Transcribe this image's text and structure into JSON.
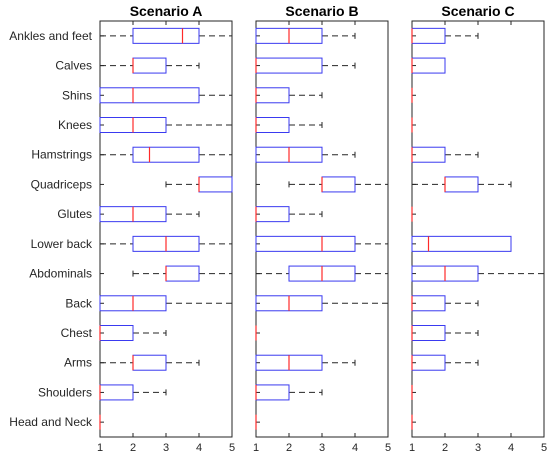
{
  "chart_data": {
    "type": "boxplot",
    "categories": [
      "Ankles and feet",
      "Calves",
      "Shins",
      "Knees",
      "Hamstrings",
      "Quadriceps",
      "Glutes",
      "Lower back",
      "Abdominals",
      "Back",
      "Chest",
      "Arms",
      "Shoulders",
      "Head and Neck"
    ],
    "xlim": [
      1,
      5
    ],
    "xticks": [
      1,
      2,
      3,
      4,
      5
    ],
    "colors": {
      "box": "#3a3af0",
      "median": "#ff2a2a",
      "whisker": "#262626",
      "axis": "#262626"
    },
    "panels": [
      {
        "title": "Scenario A",
        "boxes": [
          {
            "min": 1,
            "q1": 2,
            "median": 3.5,
            "q3": 4,
            "max": 5
          },
          {
            "min": 1,
            "q1": 2,
            "median": 2,
            "q3": 3,
            "max": 4
          },
          {
            "min": 1,
            "q1": 1,
            "median": 2,
            "q3": 4,
            "max": 5
          },
          {
            "min": 1,
            "q1": 1,
            "median": 2,
            "q3": 3,
            "max": 5
          },
          {
            "min": 1,
            "q1": 2,
            "median": 2.5,
            "q3": 4,
            "max": 5
          },
          {
            "min": 3,
            "q1": 4,
            "median": 4,
            "q3": 5,
            "max": 5
          },
          {
            "min": 1,
            "q1": 1,
            "median": 2,
            "q3": 3,
            "max": 4
          },
          {
            "min": 1,
            "q1": 2,
            "median": 3,
            "q3": 4,
            "max": 5
          },
          {
            "min": 2,
            "q1": 3,
            "median": 3,
            "q3": 4,
            "max": 5
          },
          {
            "min": 1,
            "q1": 1,
            "median": 2,
            "q3": 3,
            "max": 5
          },
          {
            "min": 1,
            "q1": 1,
            "median": 1,
            "q3": 2,
            "max": 3
          },
          {
            "min": 1,
            "q1": 2,
            "median": 2,
            "q3": 3,
            "max": 4
          },
          {
            "min": 1,
            "q1": 1,
            "median": 1,
            "q3": 2,
            "max": 3
          },
          {
            "min": 1,
            "q1": 1,
            "median": 1,
            "q3": 1,
            "max": 1
          }
        ]
      },
      {
        "title": "Scenario B",
        "boxes": [
          {
            "min": 1,
            "q1": 1,
            "median": 2,
            "q3": 3,
            "max": 4
          },
          {
            "min": 1,
            "q1": 1,
            "median": 1,
            "q3": 3,
            "max": 4
          },
          {
            "min": 1,
            "q1": 1,
            "median": 1,
            "q3": 2,
            "max": 3
          },
          {
            "min": 1,
            "q1": 1,
            "median": 1,
            "q3": 2,
            "max": 3
          },
          {
            "min": 1,
            "q1": 1,
            "median": 2,
            "q3": 3,
            "max": 4
          },
          {
            "min": 2,
            "q1": 3,
            "median": 3,
            "q3": 4,
            "max": 5
          },
          {
            "min": 1,
            "q1": 1,
            "median": 1,
            "q3": 2,
            "max": 3
          },
          {
            "min": 1,
            "q1": 1,
            "median": 3,
            "q3": 4,
            "max": 5
          },
          {
            "min": 1,
            "q1": 2,
            "median": 3,
            "q3": 4,
            "max": 5
          },
          {
            "min": 1,
            "q1": 1,
            "median": 2,
            "q3": 3,
            "max": 5
          },
          {
            "min": 1,
            "q1": 1,
            "median": 1,
            "q3": 1,
            "max": 1
          },
          {
            "min": 1,
            "q1": 1,
            "median": 2,
            "q3": 3,
            "max": 4
          },
          {
            "min": 1,
            "q1": 1,
            "median": 1,
            "q3": 2,
            "max": 3
          },
          {
            "min": 1,
            "q1": 1,
            "median": 1,
            "q3": 1,
            "max": 1
          }
        ]
      },
      {
        "title": "Scenario C",
        "boxes": [
          {
            "min": 1,
            "q1": 1,
            "median": 1,
            "q3": 2,
            "max": 3
          },
          {
            "min": 1,
            "q1": 1,
            "median": 1,
            "q3": 2,
            "max": 2
          },
          {
            "min": 1,
            "q1": 1,
            "median": 1,
            "q3": 1,
            "max": 1
          },
          {
            "min": 1,
            "q1": 1,
            "median": 1,
            "q3": 1,
            "max": 1
          },
          {
            "min": 1,
            "q1": 1,
            "median": 1,
            "q3": 2,
            "max": 3
          },
          {
            "min": 1,
            "q1": 2,
            "median": 2,
            "q3": 3,
            "max": 4
          },
          {
            "min": 1,
            "q1": 1,
            "median": 1,
            "q3": 1,
            "max": 1
          },
          {
            "min": 1,
            "q1": 1,
            "median": 1.5,
            "q3": 4,
            "max": 4
          },
          {
            "min": 1,
            "q1": 1,
            "median": 2,
            "q3": 3,
            "max": 5
          },
          {
            "min": 1,
            "q1": 1,
            "median": 1,
            "q3": 2,
            "max": 3
          },
          {
            "min": 1,
            "q1": 1,
            "median": 1,
            "q3": 2,
            "max": 3
          },
          {
            "min": 1,
            "q1": 1,
            "median": 1,
            "q3": 2,
            "max": 3
          },
          {
            "min": 1,
            "q1": 1,
            "median": 1,
            "q3": 1,
            "max": 1
          },
          {
            "min": 1,
            "q1": 1,
            "median": 1,
            "q3": 1,
            "max": 1
          }
        ]
      }
    ]
  }
}
